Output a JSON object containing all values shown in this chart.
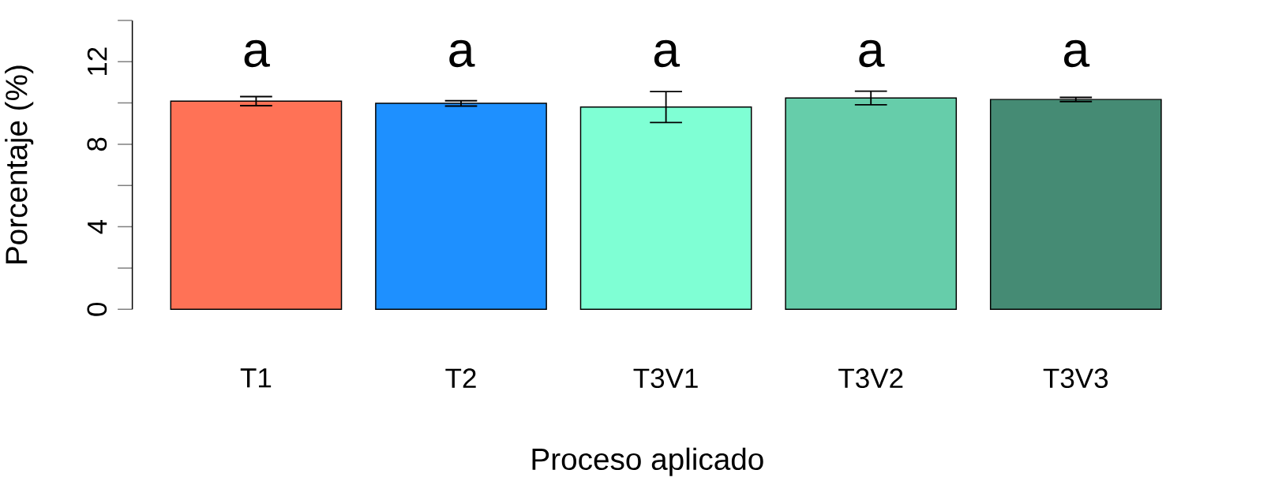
{
  "chart_data": {
    "type": "bar",
    "xlabel": "Proceso aplicado",
    "ylabel": "Porcentaje (%)",
    "categories": [
      "T1",
      "T2",
      "T3V1",
      "T3V2",
      "T3V3"
    ],
    "values": [
      10.09,
      9.98,
      9.8,
      10.24,
      10.17
    ],
    "errors": [
      0.22,
      0.13,
      0.75,
      0.33,
      0.1
    ],
    "colors": [
      "#ff7256",
      "#1e90ff",
      "#7fffd4",
      "#66cdaa",
      "#458b74"
    ],
    "ylim": [
      0,
      14
    ],
    "yticks": [
      0,
      4,
      8,
      12
    ],
    "annotations": [
      "a",
      "a",
      "a",
      "a",
      "a"
    ]
  }
}
